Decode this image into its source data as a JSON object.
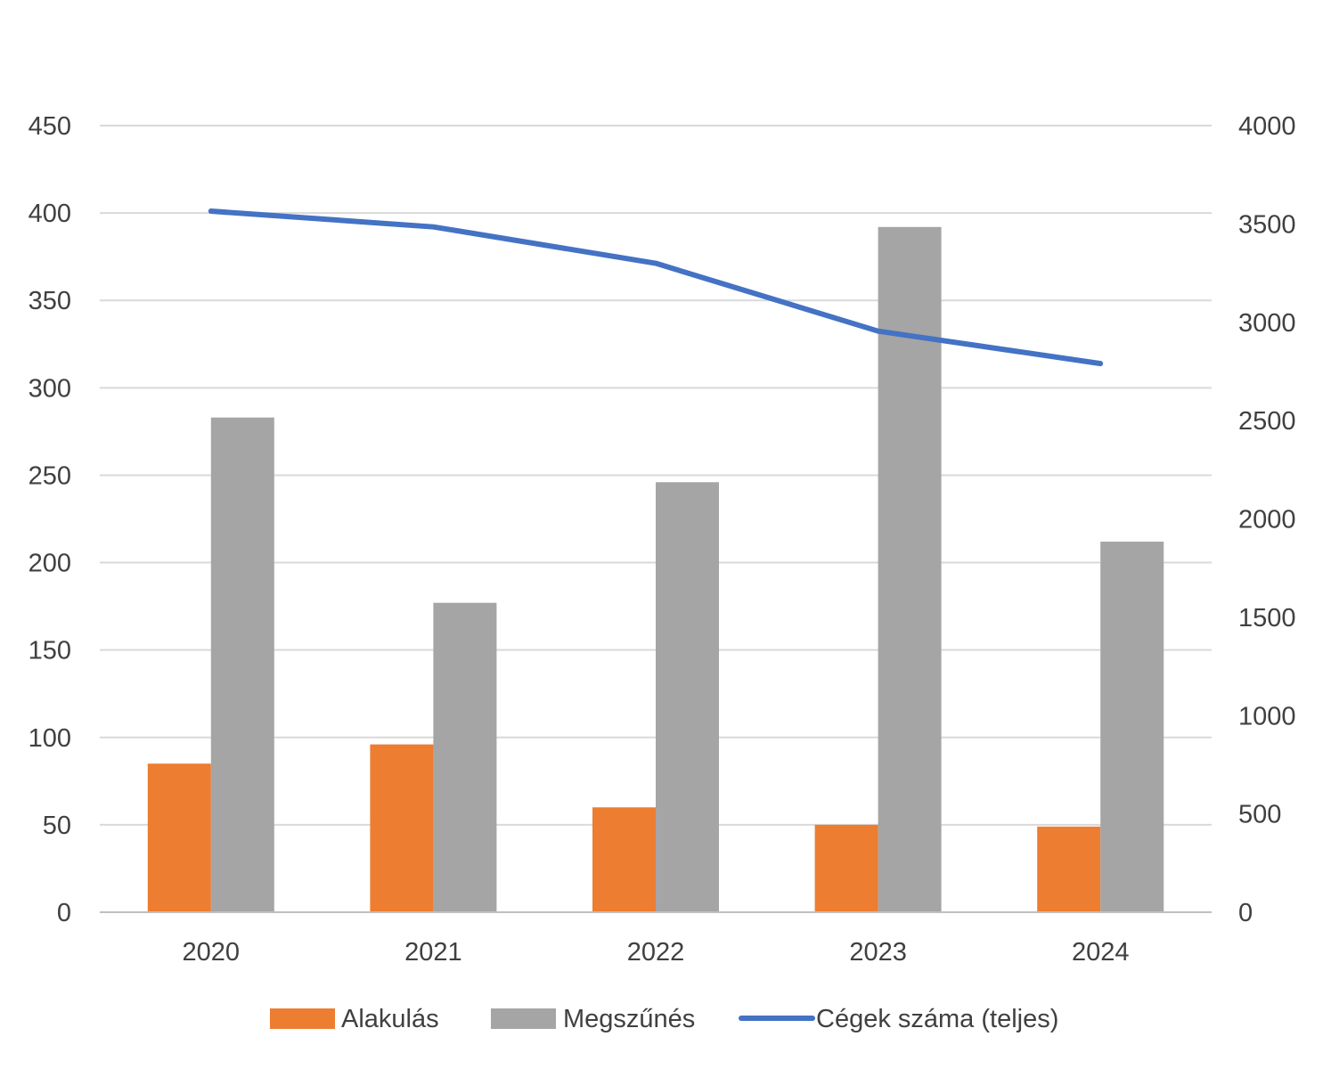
{
  "chart_data": {
    "type": "bar",
    "title": "",
    "xlabel": "",
    "ylabel": "",
    "categories": [
      "2020",
      "2021",
      "2022",
      "2023",
      "2024"
    ],
    "y_left": {
      "min": 0,
      "max": 450,
      "step": 50,
      "ticks": [
        "0",
        "50",
        "100",
        "150",
        "200",
        "250",
        "300",
        "350",
        "400",
        "450"
      ]
    },
    "y_right": {
      "min": 0,
      "max": 4000,
      "step": 500,
      "ticks": [
        "0",
        "500",
        "1000",
        "1500",
        "2000",
        "2500",
        "3000",
        "3500",
        "4000"
      ]
    },
    "grid": true,
    "legend_position": "bottom",
    "series": [
      {
        "name": "Alakulás",
        "kind": "bar",
        "axis": "left",
        "color": "#ED7D31",
        "values": [
          85,
          96,
          60,
          50,
          49
        ]
      },
      {
        "name": "Megszűnés",
        "kind": "bar",
        "axis": "left",
        "color": "#A5A5A5",
        "values": [
          283,
          177,
          246,
          392,
          212
        ]
      },
      {
        "name": "Cégek száma (teljes)",
        "kind": "line",
        "axis": "right",
        "color": "#4472C4",
        "values": [
          3565,
          3485,
          3300,
          2955,
          2790
        ]
      }
    ]
  }
}
